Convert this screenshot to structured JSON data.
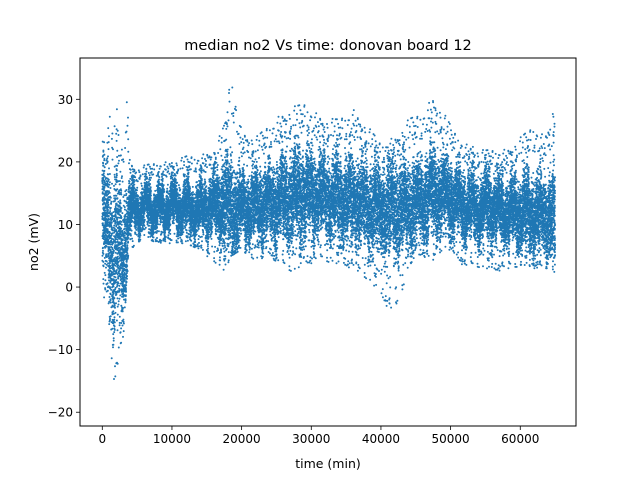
{
  "chart_data": {
    "type": "scatter",
    "title": "median no2 Vs time: donovan board 12",
    "xlabel": "time (min)",
    "ylabel": "no2 (mV)",
    "xlim": [
      -3200,
      68000
    ],
    "ylim": [
      -22.2,
      36.6
    ],
    "xticks": [
      0,
      10000,
      20000,
      30000,
      40000,
      50000,
      60000
    ],
    "xtick_labels": [
      "0",
      "10000",
      "20000",
      "30000",
      "40000",
      "50000",
      "60000"
    ],
    "yticks": [
      -20,
      -10,
      0,
      10,
      20,
      30
    ],
    "ytick_labels": [
      "−20",
      "−10",
      "0",
      "10",
      "20",
      "30"
    ],
    "grid": false,
    "legend": "none",
    "series": [
      {
        "color": "#1f77b4",
        "marker_size": 2,
        "point_count": 26000,
        "envelope": {
          "comment_free_fields": true,
          "x": [
            0,
            500,
            1000,
            1500,
            2000,
            2500,
            3000,
            3500,
            4000,
            5000,
            6000,
            8000,
            10000,
            12000,
            14000,
            16000,
            17500,
            18500,
            20000,
            22000,
            24000,
            26000,
            27500,
            29000,
            30500,
            32000,
            34000,
            36000,
            38000,
            40000,
            42000,
            44000,
            46000,
            47500,
            49000,
            50500,
            52000,
            54000,
            56000,
            58000,
            60000,
            62000,
            63500,
            64500,
            65000
          ],
          "center": [
            12,
            10,
            8,
            3,
            9,
            6,
            3,
            10,
            12,
            12.5,
            13,
            12.5,
            13,
            12.5,
            12.5,
            13,
            13.5,
            13,
            12.5,
            13,
            13.5,
            14,
            14.5,
            15,
            15,
            14.5,
            14,
            14,
            13,
            12.5,
            12.5,
            13,
            14,
            15,
            15,
            14,
            13,
            12.5,
            13,
            12,
            12,
            12,
            11.5,
            11,
            10
          ],
          "low": [
            -5,
            -2,
            -10,
            -19.5,
            -16,
            -10,
            -9,
            1,
            5,
            7,
            8,
            7,
            7,
            7,
            6,
            4,
            2,
            5,
            6,
            4,
            5,
            3,
            2,
            3,
            4,
            4,
            3,
            3,
            1,
            -2,
            -5,
            3,
            5,
            4,
            6,
            5,
            3,
            3,
            2,
            3,
            3,
            3,
            3,
            3,
            2
          ],
          "high": [
            30.8,
            22,
            28,
            25,
            30.5,
            26,
            22,
            31.5,
            20,
            19,
            19.5,
            20,
            20,
            21,
            21,
            22,
            26,
            34.5,
            25,
            24,
            26,
            28,
            29,
            29.5,
            28,
            27,
            27,
            28.5,
            26,
            23,
            24,
            27,
            28,
            30.5,
            28,
            25,
            23,
            22,
            22,
            22,
            24,
            26,
            24,
            28,
            31
          ]
        }
      }
    ]
  }
}
